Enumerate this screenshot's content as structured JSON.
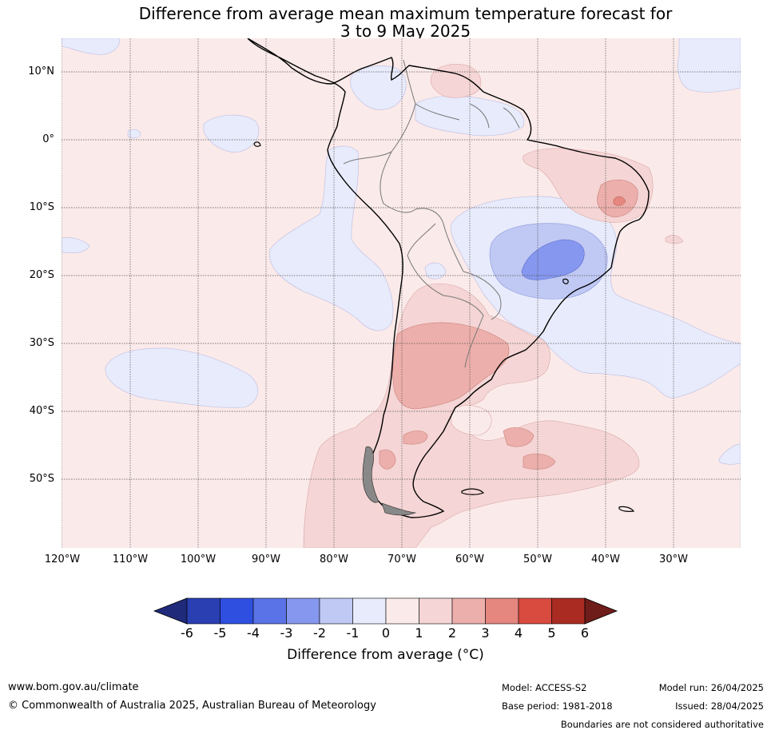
{
  "title_line1": "Difference from average mean maximum temperature forecast for",
  "title_line2": "3 to 9 May 2025",
  "lat_labels": [
    "10°N",
    "0°",
    "10°S",
    "20°S",
    "30°S",
    "40°S",
    "50°S"
  ],
  "lon_labels": [
    "120°W",
    "110°W",
    "100°W",
    "90°W",
    "80°W",
    "70°W",
    "60°W",
    "50°W",
    "40°W",
    "30°W"
  ],
  "colorbar": {
    "ticks": [
      "-6",
      "-5",
      "-4",
      "-3",
      "-2",
      "-1",
      "0",
      "1",
      "2",
      "3",
      "4",
      "5",
      "6"
    ],
    "label": "Difference from average (°C)",
    "colors": [
      "#1f2a7a",
      "#2a3fb2",
      "#2f4fe0",
      "#5a73e6",
      "#8597ee",
      "#c0c8f4",
      "#e8ebfb",
      "#fbeaea",
      "#f5d5d5",
      "#ecafab",
      "#e5867f",
      "#d94a3f",
      "#a92b22",
      "#6e1d1a"
    ]
  },
  "footer": {
    "website": "www.bom.gov.au/climate",
    "copyright": "© Commonwealth of Australia 2025, Australian Bureau of Meteorology",
    "model": "Model: ACCESS-S2",
    "base_period": "Base period: 1981-2018",
    "model_run": "Model run: 26/04/2025",
    "issued": "Issued: 28/04/2025",
    "disclaimer": "Boundaries are not considered authoritative"
  }
}
